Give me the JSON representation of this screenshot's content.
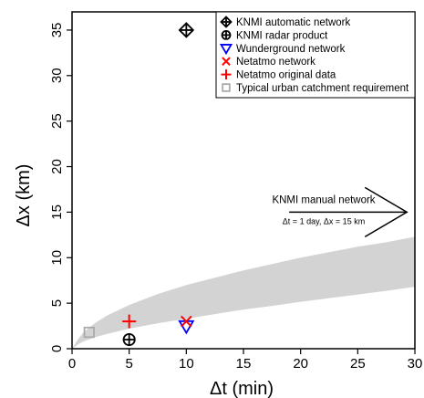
{
  "chart_data": {
    "type": "scatter",
    "xlabel": "Δt (min)",
    "ylabel": "Δx (km)",
    "xlim": [
      0,
      30
    ],
    "ylim": [
      0,
      37
    ],
    "x_ticks": [
      0,
      5,
      10,
      15,
      20,
      25,
      30
    ],
    "y_ticks": [
      0,
      5,
      10,
      15,
      20,
      25,
      30,
      35
    ],
    "grid": false,
    "legend_position": "top-right",
    "series": [
      {
        "name": "KNMI automatic network",
        "marker": "diamond-cross",
        "color": "#000000",
        "points": [
          {
            "x": 10,
            "y": 35
          }
        ]
      },
      {
        "name": "KNMI radar product",
        "marker": "circle-plus",
        "color": "#000000",
        "points": [
          {
            "x": 5,
            "y": 1
          }
        ]
      },
      {
        "name": "Wunderground network",
        "marker": "triangle-down",
        "color": "#0000ff",
        "points": [
          {
            "x": 10,
            "y": 2.5
          }
        ]
      },
      {
        "name": "Netatmo network",
        "marker": "x",
        "color": "#ff0000",
        "points": [
          {
            "x": 10,
            "y": 3
          }
        ]
      },
      {
        "name": "Netatmo original data",
        "marker": "plus",
        "color": "#ff0000",
        "points": [
          {
            "x": 5,
            "y": 3
          }
        ]
      },
      {
        "name": "Typical urban catchment requirement",
        "marker": "square",
        "color": "#aaaaaa",
        "points": [
          {
            "x": 1.5,
            "y": 1.8
          }
        ]
      }
    ],
    "shaded_region": {
      "color": "#d3d3d3",
      "upper": [
        [
          0,
          0
        ],
        [
          0.5,
          1.0
        ],
        [
          1,
          1.8
        ],
        [
          2,
          2.8
        ],
        [
          3,
          3.6
        ],
        [
          5,
          4.8
        ],
        [
          7.5,
          6.0
        ],
        [
          10,
          7.0
        ],
        [
          12.5,
          7.8
        ],
        [
          15,
          8.6
        ],
        [
          17.5,
          9.3
        ],
        [
          20,
          10.0
        ],
        [
          22.5,
          10.6
        ],
        [
          25,
          11.2
        ],
        [
          27.5,
          11.7
        ],
        [
          30,
          12.3
        ]
      ],
      "lower": [
        [
          0,
          0
        ],
        [
          0.5,
          0.45
        ],
        [
          1,
          0.8
        ],
        [
          2,
          1.25
        ],
        [
          3,
          1.6
        ],
        [
          5,
          2.2
        ],
        [
          7.5,
          2.8
        ],
        [
          10,
          3.3
        ],
        [
          12.5,
          3.8
        ],
        [
          15,
          4.3
        ],
        [
          17.5,
          4.7
        ],
        [
          20,
          5.15
        ],
        [
          22.5,
          5.55
        ],
        [
          25,
          5.95
        ],
        [
          27.5,
          6.35
        ],
        [
          30,
          6.8
        ]
      ]
    },
    "annotation": {
      "title": "KNMI manual network",
      "subtitle": "Δt = 1 day, Δx = 15 km",
      "arrow_from": [
        19,
        15
      ],
      "arrow_to": [
        29.3,
        15
      ]
    }
  }
}
